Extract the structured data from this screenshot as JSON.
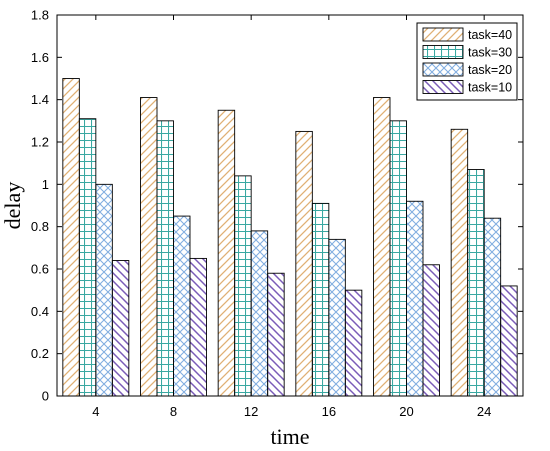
{
  "chart_data": {
    "type": "bar",
    "xlabel": "time",
    "ylabel": "delay",
    "categories": [
      "4",
      "8",
      "12",
      "16",
      "20",
      "24"
    ],
    "ylim": [
      0,
      1.8
    ],
    "yticks": [
      "0",
      "0.2",
      "0.4",
      "0.6",
      "0.8",
      "1",
      "1.2",
      "1.4",
      "1.6",
      "1.8"
    ],
    "grid": false,
    "legend_position": "top-right",
    "series": [
      {
        "name": "task=40",
        "values": [
          1.5,
          1.41,
          1.35,
          1.25,
          1.41,
          1.26
        ],
        "color": "#e0b074",
        "pattern": "diagonal-lines"
      },
      {
        "name": "task=30",
        "values": [
          1.31,
          1.3,
          1.04,
          0.91,
          1.3,
          1.07
        ],
        "color": "#3aa8a2",
        "pattern": "grid"
      },
      {
        "name": "task=20",
        "values": [
          1.0,
          0.85,
          0.78,
          0.74,
          0.92,
          0.84
        ],
        "color": "#82aee0",
        "pattern": "crosshatch"
      },
      {
        "name": "task=10",
        "values": [
          0.64,
          0.65,
          0.58,
          0.5,
          0.62,
          0.52
        ],
        "color": "#7a5cb8",
        "pattern": "back-diagonal-lines"
      }
    ]
  }
}
